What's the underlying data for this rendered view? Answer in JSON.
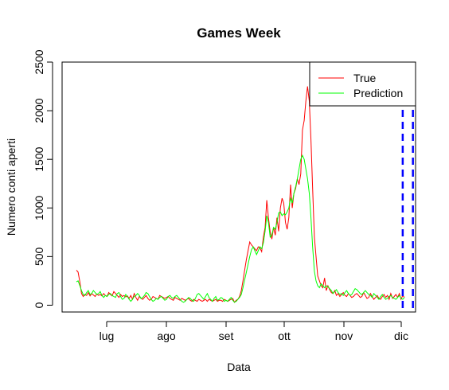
{
  "chart_data": {
    "type": "line",
    "title": "Games Week",
    "xlabel": "Data",
    "ylabel": "Numero conti aperti",
    "x_ticks": [
      "lug",
      "ago",
      "set",
      "ott",
      "nov",
      "dic"
    ],
    "y_ticks": [
      "0",
      "500",
      "1000",
      "1500",
      "2000",
      "2500"
    ],
    "ylim": [
      -70,
      2500
    ],
    "legend": {
      "placement": "top-right"
    },
    "series": [
      {
        "name": "True",
        "color": "#ff0000",
        "values": [
          360,
          340,
          240,
          120,
          90,
          110,
          100,
          130,
          95,
          120,
          105,
          90,
          115,
          100,
          110,
          95,
          120,
          100,
          90,
          130,
          110,
          95,
          140,
          120,
          100,
          80,
          110,
          90,
          100,
          85,
          95,
          70,
          100,
          60,
          120,
          80,
          50,
          90,
          70,
          60,
          80,
          100,
          70,
          50,
          60,
          90,
          80,
          70,
          60,
          100,
          90,
          80,
          70,
          80,
          90,
          70,
          60,
          50,
          80,
          70,
          60,
          50,
          70,
          60,
          50,
          60,
          70,
          50,
          40,
          60,
          50,
          40,
          60,
          50,
          40,
          50,
          60,
          40,
          60,
          50,
          40,
          50,
          60,
          40,
          50,
          50,
          40,
          60,
          50,
          40,
          50,
          60,
          70,
          30,
          50,
          60,
          90,
          150,
          250,
          360,
          470,
          560,
          650,
          620,
          600,
          580,
          560,
          600,
          590,
          550,
          700,
          800,
          1080,
          900,
          750,
          680,
          800,
          720,
          900,
          760,
          1000,
          1100,
          1050,
          850,
          780,
          900,
          1240,
          1000,
          1150,
          1200,
          1300,
          1240,
          1350,
          1800,
          1900,
          2100,
          2250,
          2100,
          1700,
          1200,
          700,
          500,
          300,
          250,
          200,
          180,
          280,
          150,
          200,
          160,
          130,
          120,
          150,
          100,
          120,
          90,
          110,
          130,
          100,
          90,
          120,
          100,
          80,
          90,
          110,
          120,
          100,
          80,
          90,
          130,
          100,
          70,
          80,
          120,
          90,
          60,
          80,
          100,
          70,
          60,
          90,
          110,
          80,
          100,
          60,
          120,
          70,
          90,
          110,
          80,
          120,
          60,
          100,
          80
        ]
      },
      {
        "name": "Prediction",
        "color": "#00ff00",
        "values": [
          240,
          250,
          200,
          150,
          110,
          100,
          130,
          150,
          110,
          120,
          150,
          130,
          110,
          120,
          140,
          100,
          80,
          100,
          90,
          110,
          120,
          100,
          90,
          80,
          120,
          130,
          90,
          60,
          70,
          110,
          90,
          60,
          40,
          60,
          90,
          100,
          120,
          100,
          70,
          80,
          100,
          130,
          120,
          90,
          60,
          40,
          50,
          70,
          60,
          80,
          90,
          70,
          50,
          60,
          90,
          100,
          80,
          70,
          90,
          100,
          80,
          60,
          40,
          30,
          40,
          60,
          80,
          70,
          50,
          40,
          70,
          110,
          120,
          100,
          80,
          60,
          90,
          120,
          80,
          60,
          40,
          70,
          90,
          50,
          60,
          80,
          70,
          40,
          50,
          40,
          60,
          80,
          50,
          30,
          40,
          60,
          80,
          110,
          180,
          260,
          340,
          420,
          500,
          570,
          600,
          560,
          520,
          560,
          600,
          580,
          640,
          760,
          920,
          850,
          700,
          720,
          800,
          780,
          850,
          950,
          960,
          920,
          940,
          930,
          960,
          1000,
          1100,
          1050,
          1150,
          1220,
          1300,
          1400,
          1500,
          1540,
          1500,
          1400,
          1300,
          1150,
          900,
          600,
          350,
          250,
          200,
          180,
          220,
          200,
          180,
          200,
          190,
          170,
          150,
          120,
          140,
          160,
          130,
          110,
          120,
          100,
          130,
          150,
          120,
          100,
          110,
          140,
          170,
          160,
          140,
          120,
          110,
          130,
          150,
          130,
          110,
          100,
          80,
          120,
          100,
          80,
          60,
          90,
          110,
          80,
          60,
          70,
          90,
          100,
          80,
          70,
          60,
          80,
          100,
          70,
          60,
          80
        ]
      }
    ],
    "annotations": [
      {
        "type": "vertical-dashed-line",
        "color": "#0000ff",
        "x_label": "dic",
        "index": 192
      },
      {
        "type": "vertical-dashed-line",
        "color": "#0000ff",
        "x_label": "dic",
        "index": 198
      }
    ]
  }
}
